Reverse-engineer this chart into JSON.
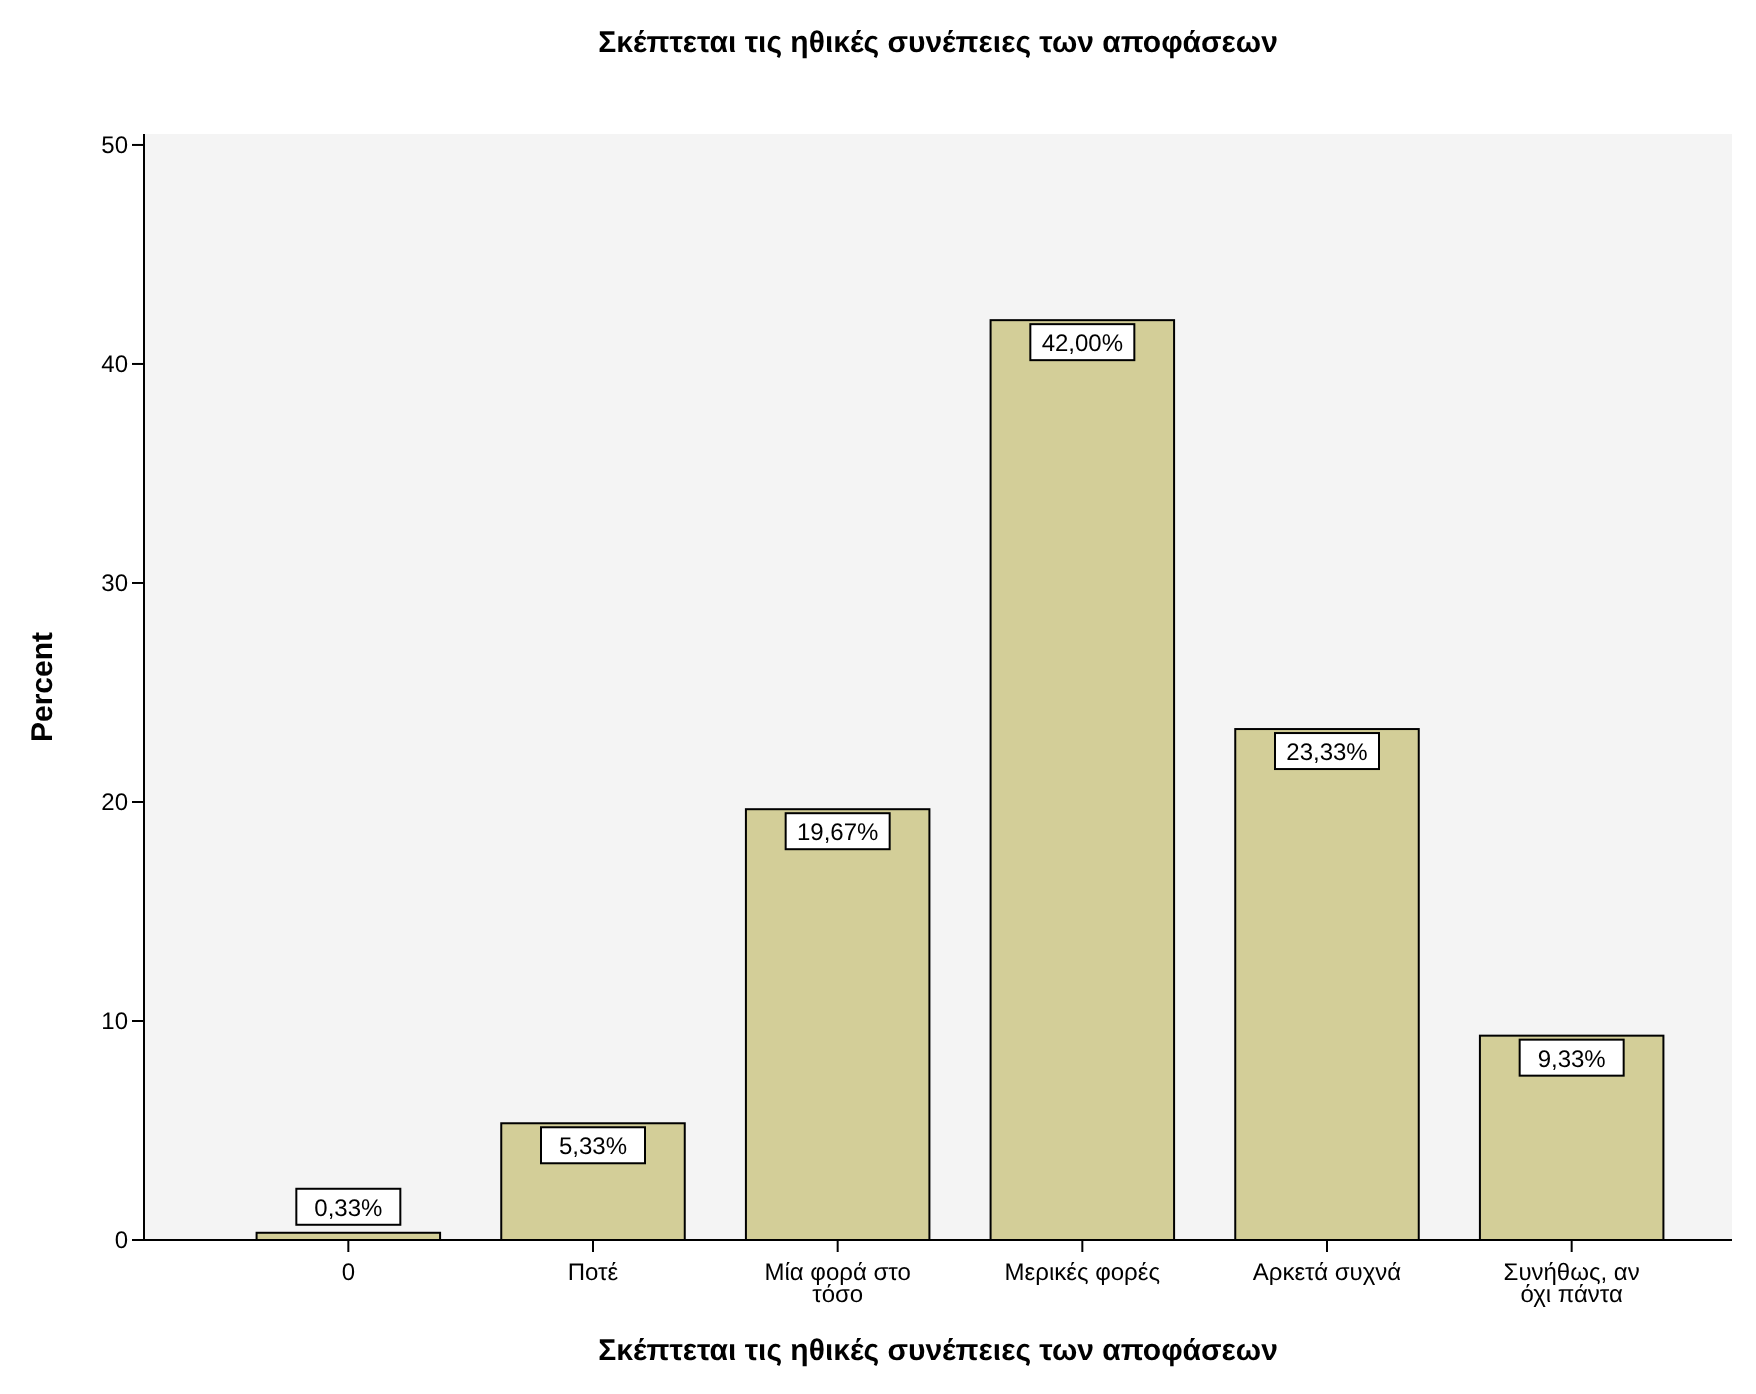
{
  "chart_data": {
    "type": "bar",
    "title": "Σκέπτεται τις ηθικές συνέπειες των αποφάσεων",
    "xlabel": "Σκέπτεται τις ηθικές συνέπειες των αποφάσεων",
    "ylabel": "Percent",
    "categories": [
      "0",
      "Ποτέ",
      "Μία φορά στο τόσο",
      "Μερικές φορές",
      "Αρκετά συχνά",
      "Συνήθως, αν όχι πάντα"
    ],
    "values": [
      0.33,
      5.33,
      19.67,
      42.0,
      23.33,
      9.33
    ],
    "value_labels": [
      "0,33%",
      "5,33%",
      "19,67%",
      "42,00%",
      "23,33%",
      "9,33%"
    ],
    "color": "#d3ce98",
    "ylim": [
      0,
      50.5
    ],
    "yticks": [
      0,
      10,
      20,
      30,
      40,
      50
    ],
    "grid": false
  }
}
